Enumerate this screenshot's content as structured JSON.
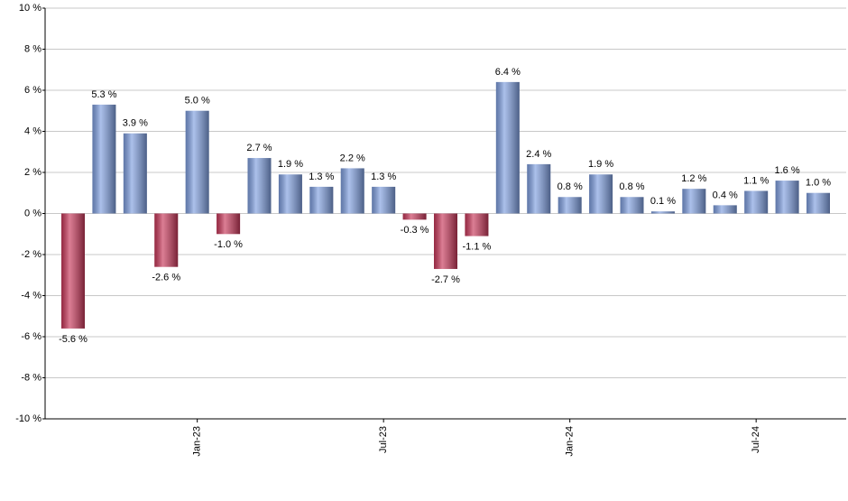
{
  "chart_data": {
    "type": "bar",
    "categories": [
      null,
      null,
      null,
      null,
      "Jan-23",
      null,
      null,
      null,
      null,
      null,
      "Jul-23",
      null,
      null,
      null,
      null,
      null,
      "Jan-24",
      null,
      null,
      null,
      null,
      null,
      "Jul-24",
      null,
      null
    ],
    "values": [
      -5.6,
      5.3,
      3.9,
      -2.6,
      5.0,
      -1.0,
      2.7,
      1.9,
      1.3,
      2.2,
      1.3,
      -0.3,
      -2.7,
      -1.1,
      6.4,
      2.4,
      0.8,
      1.9,
      0.8,
      0.1,
      1.2,
      0.4,
      1.1,
      1.6,
      1.0
    ],
    "value_labels": [
      "-5.6 %",
      "5.3 %",
      "3.9 %",
      "-2.6 %",
      "5.0 %",
      "-1.0 %",
      "2.7 %",
      "1.9 %",
      "1.3 %",
      "2.2 %",
      "1.3 %",
      "-0.3 %",
      "-2.7 %",
      "-1.1 %",
      "6.4 %",
      "2.4 %",
      "0.8 %",
      "1.9 %",
      "0.8 %",
      "0.1 %",
      "1.2 %",
      "0.4 %",
      "1.1 %",
      "1.6 %",
      "1.0 %"
    ],
    "positive_color": "#7f9fe0",
    "negative_color": "#c8385a",
    "ylim": [
      -10,
      10
    ],
    "yticks": [
      {
        "value": -10,
        "label": "-10 %"
      },
      {
        "value": -8,
        "label": "-8 %"
      },
      {
        "value": -6,
        "label": "-6 %"
      },
      {
        "value": -4,
        "label": "-4 %"
      },
      {
        "value": -2,
        "label": "-2 %"
      },
      {
        "value": 0,
        "label": "0 %"
      },
      {
        "value": 2,
        "label": "2 %"
      },
      {
        "value": 4,
        "label": "4 %"
      },
      {
        "value": 6,
        "label": "6 %"
      },
      {
        "value": 8,
        "label": "8 %"
      },
      {
        "value": 10,
        "label": "10 %"
      }
    ],
    "grid": true
  }
}
